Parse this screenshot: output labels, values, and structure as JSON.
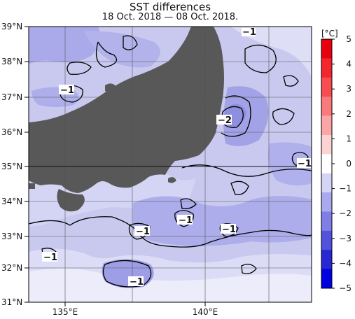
{
  "title": "SST differences",
  "subtitle": "18 Oct. 2018 — 08 Oct. 2018.",
  "map": {
    "lat_labels": [
      "39°N",
      "38°N",
      "37°N",
      "36°N",
      "35°N",
      "34°N",
      "33°N",
      "32°N",
      "31°N"
    ],
    "lon_labels": [
      "135°E",
      "140°E"
    ],
    "contour_labels": [
      "−1",
      "−2",
      "−1",
      "−1",
      "−1",
      "−1",
      "−1",
      "−1",
      "−1"
    ],
    "colors": {
      "land": "#585858",
      "sea_base": "#c9c9f0",
      "sea_dark": "#9f9fe6",
      "sea_light": "#e4e4f8",
      "frame": "#000000"
    }
  },
  "colorbar": {
    "unit": "[°C]",
    "ticks": [
      "5",
      "4",
      "3",
      "2",
      "1",
      "0",
      "−1",
      "−2",
      "−3",
      "−4",
      "−5"
    ],
    "colors": [
      "#e8000e",
      "#f2262c",
      "#f74d50",
      "#f97a7b",
      "#fba5a6",
      "#fdd2d2",
      "#ffffff",
      "#d4d4f6",
      "#a9a9ee",
      "#7e7ee6",
      "#5252dd",
      "#2727d4",
      "#0000e0"
    ]
  }
}
